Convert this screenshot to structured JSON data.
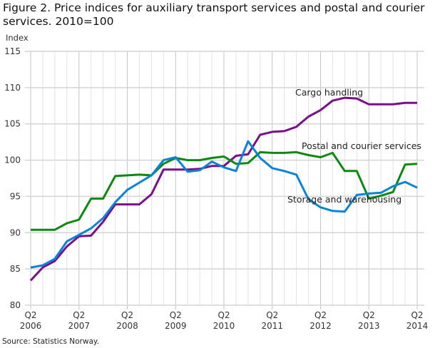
{
  "chart_data": {
    "type": "line",
    "title": "Figure 2. Price indices for auxiliary transport services and postal and courier services. 2010=100",
    "ylabel": "Index",
    "xlabel": "",
    "source": "Source: Statistics Norway.",
    "ylim": [
      80,
      115
    ],
    "yticks": [
      "80",
      "85",
      "90",
      "95",
      "100",
      "105",
      "110",
      "115"
    ],
    "grid": true,
    "x": [
      "2006Q2",
      "2006Q3",
      "2006Q4",
      "2007Q1",
      "2007Q2",
      "2007Q3",
      "2007Q4",
      "2008Q1",
      "2008Q2",
      "2008Q3",
      "2008Q4",
      "2009Q1",
      "2009Q2",
      "2009Q3",
      "2009Q4",
      "2010Q1",
      "2010Q2",
      "2010Q3",
      "2010Q4",
      "2011Q1",
      "2011Q2",
      "2011Q3",
      "2011Q4",
      "2012Q1",
      "2012Q2",
      "2012Q3",
      "2012Q4",
      "2013Q1",
      "2013Q2",
      "2013Q3",
      "2013Q4",
      "2014Q1",
      "2014Q2"
    ],
    "xticks": [
      {
        "q": "Q2",
        "y": "2006"
      },
      {
        "q": "Q2",
        "y": "2007"
      },
      {
        "q": "Q2",
        "y": "2008"
      },
      {
        "q": "Q2",
        "y": "2009"
      },
      {
        "q": "Q2",
        "y": "2010"
      },
      {
        "q": "Q2",
        "y": "2011"
      },
      {
        "q": "Q2",
        "y": "2012"
      },
      {
        "q": "Q2",
        "y": "2013"
      },
      {
        "q": "Q2",
        "y": "2014"
      }
    ],
    "series": [
      {
        "name": "Cargo handling",
        "color": "#7a0f8a",
        "values": [
          83.4,
          85.2,
          86.1,
          88.1,
          89.5,
          89.6,
          91.5,
          93.9,
          93.9,
          93.9,
          95.3,
          98.7,
          98.7,
          98.7,
          98.8,
          99.2,
          99.2,
          100.6,
          100.8,
          103.5,
          103.9,
          104.0,
          104.6,
          106.0,
          106.9,
          108.2,
          108.6,
          108.5,
          107.7,
          107.7,
          107.7,
          107.9,
          107.9
        ]
      },
      {
        "name": "Postal and courier services",
        "color": "#0c8a10",
        "values": [
          90.4,
          90.4,
          90.4,
          91.3,
          91.8,
          94.7,
          94.7,
          97.8,
          97.9,
          98.0,
          97.9,
          99.5,
          100.3,
          100.0,
          100.0,
          100.3,
          100.5,
          99.5,
          99.6,
          101.1,
          101.0,
          101.0,
          101.1,
          100.7,
          100.4,
          101.0,
          98.5,
          98.5,
          94.7,
          95.1,
          95.6,
          99.4,
          99.5
        ]
      },
      {
        "name": "Storage and warehousing",
        "color": "#0a84d8",
        "values": [
          85.2,
          85.5,
          86.4,
          88.8,
          89.7,
          90.6,
          92.0,
          94.2,
          95.9,
          96.9,
          97.9,
          100.0,
          100.4,
          98.4,
          98.6,
          99.8,
          99.0,
          98.5,
          102.6,
          100.3,
          98.9,
          98.5,
          98.0,
          94.6,
          93.5,
          93.0,
          92.9,
          95.2,
          95.4,
          95.5,
          96.4,
          97.0,
          96.2
        ]
      }
    ]
  }
}
